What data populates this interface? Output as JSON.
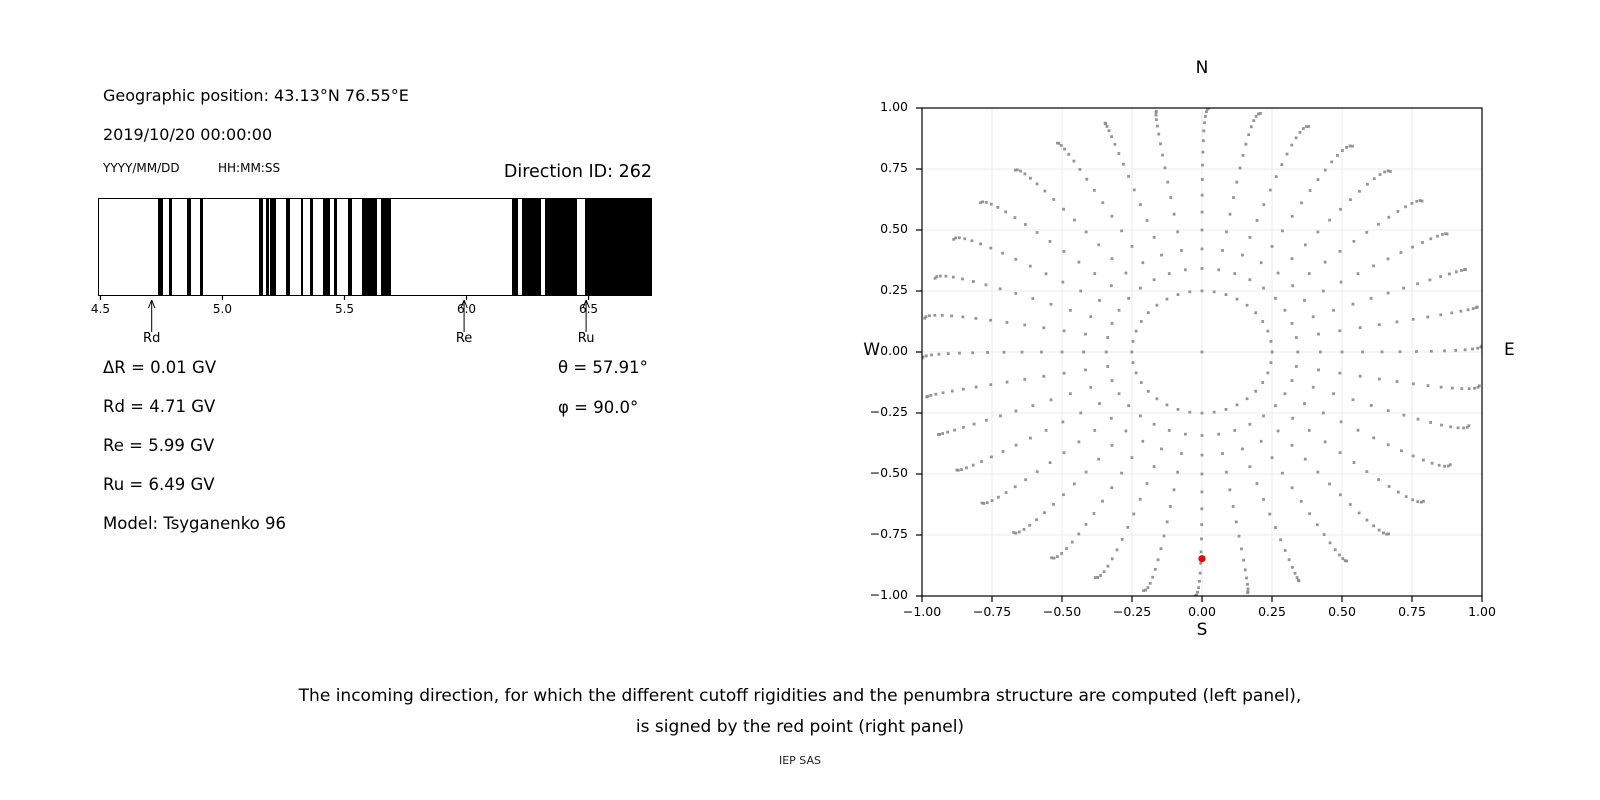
{
  "header": {
    "geo_position": "Geographic position: 43.13°N 76.55°E",
    "datetime": "2019/10/20 00:00:00",
    "date_format": "YYYY/MM/DD",
    "time_format": "HH:MM:SS",
    "direction_id": "Direction ID: 262"
  },
  "info": {
    "delta_r": "ΔR = 0.01 GV",
    "rd": "Rd = 4.71 GV",
    "re": "Re = 5.99 GV",
    "ru": "Ru = 6.49 GV",
    "model": "Model: Tsyganenko 96",
    "theta": "θ = 57.91°",
    "phi": "φ = 90.0°"
  },
  "caption": {
    "line1": "The incoming direction, for which the different cutoff rigidities and the penumbra structure are computed (left panel),",
    "line2": "is signed by the red point (right panel)",
    "credit": "IEP SAS"
  },
  "chart_data": [
    {
      "id": "penumbra-barcode",
      "type": "barcode",
      "xlabel_units": "GV",
      "xlim": [
        4.49,
        6.76
      ],
      "xticks": [
        4.5,
        5.0,
        5.5,
        6.0,
        6.5
      ],
      "xtick_labels": [
        "4.5",
        "5.0",
        "5.5",
        "6.0",
        "6.5"
      ],
      "bar_color": "#000000",
      "allowed_bands_gv": [
        [
          4.732,
          4.752
        ],
        [
          4.779,
          4.791
        ],
        [
          4.852,
          4.869
        ],
        [
          4.906,
          4.918
        ],
        [
          5.148,
          5.163
        ],
        [
          5.177,
          5.19
        ],
        [
          5.193,
          5.216
        ],
        [
          5.261,
          5.276
        ],
        [
          5.319,
          5.331
        ],
        [
          5.357,
          5.372
        ],
        [
          5.412,
          5.44
        ],
        [
          5.455,
          5.468
        ],
        [
          5.514,
          5.529
        ],
        [
          5.57,
          5.635
        ],
        [
          5.651,
          5.689
        ],
        [
          6.187,
          6.214
        ],
        [
          6.228,
          6.306
        ],
        [
          6.325,
          6.454
        ],
        [
          6.488,
          6.76
        ]
      ],
      "arrows": [
        {
          "label": "Rd",
          "gv": 4.71
        },
        {
          "label": "Re",
          "gv": 5.99
        },
        {
          "label": "Ru",
          "gv": 6.49
        }
      ]
    },
    {
      "id": "direction-map",
      "type": "scatter",
      "compass": {
        "top": "N",
        "bottom": "S",
        "left": "W",
        "right": "E"
      },
      "xlim": [
        -1,
        1
      ],
      "ylim": [
        -1,
        1
      ],
      "tick_values": [
        -1,
        -0.75,
        -0.5,
        -0.25,
        0,
        0.25,
        0.5,
        0.75,
        1
      ],
      "tick_labels": [
        "−1.00",
        "−0.75",
        "−0.50",
        "−0.25",
        "0.00",
        "0.25",
        "0.50",
        "0.75",
        "1.00"
      ],
      "grid": true,
      "grid_color": "#ebebeb",
      "dot_color": "#8a8a8a",
      "rays": {
        "azimuth_start_deg": 0,
        "azimuth_step_deg": 10,
        "azimuth_count": 36,
        "zenith_deg": [
          14.5,
          20,
          25,
          30,
          35,
          40,
          45,
          50,
          55,
          60,
          65,
          70,
          75,
          80,
          85,
          90
        ],
        "radius_rule": "sin(zenith)",
        "curl_amp_deg": 2.5
      },
      "center_dot": {
        "x": 0,
        "y": 0
      },
      "red_point": {
        "x": 0.0,
        "y": -0.847,
        "azimuth_deg": 180,
        "zenith_deg": 57.91,
        "color": "#ee0000"
      }
    }
  ]
}
